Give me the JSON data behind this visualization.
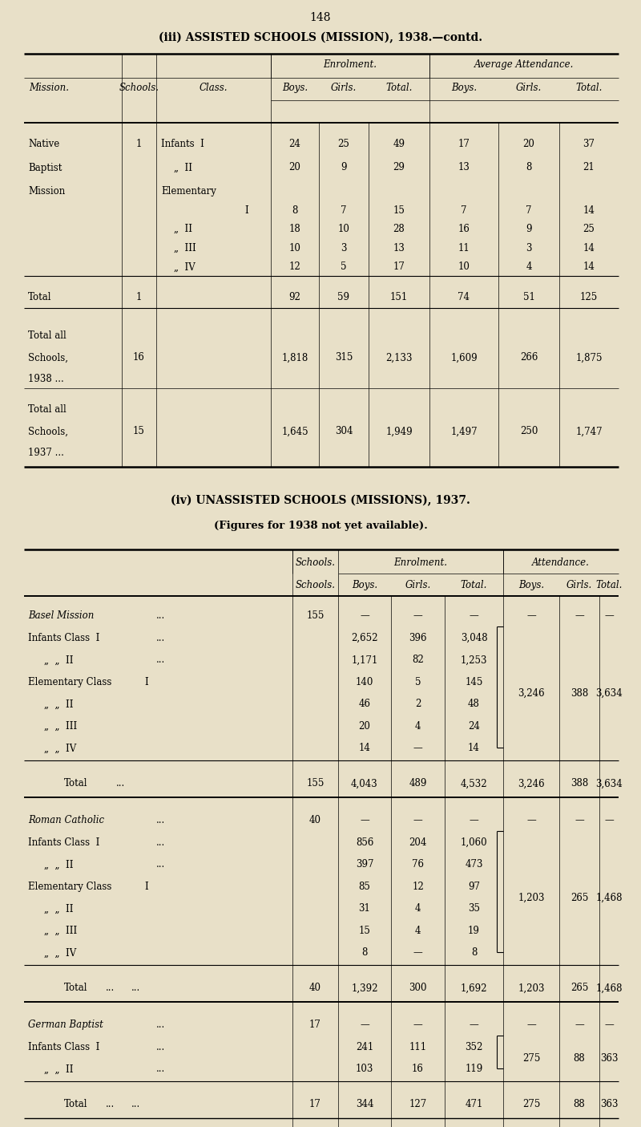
{
  "bg_color": "#e8e0c8",
  "page_num": "148",
  "title1_part1": "(iii) ASSISTED SCHOOLS (MISSION), 1938.",
  "title1_part2": "—contd.",
  "title2": "(iv) UNASSISTED SCHOOLS (MISSIONS), 1937.",
  "title2b": "(Figures for 1938 not yet available)."
}
